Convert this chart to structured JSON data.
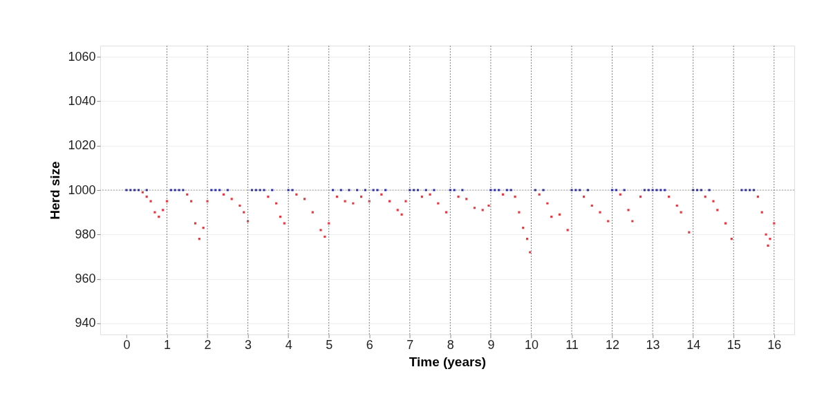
{
  "chart_data": {
    "type": "scatter",
    "xlabel": "Time (years)",
    "ylabel": "Herd size",
    "xlim": [
      -0.65,
      16.5
    ],
    "ylim": [
      935,
      1065
    ],
    "xticks": [
      0,
      1,
      2,
      3,
      4,
      5,
      6,
      7,
      8,
      9,
      10,
      11,
      12,
      13,
      14,
      15,
      16
    ],
    "yticks": [
      940,
      960,
      980,
      1000,
      1020,
      1040,
      1060
    ],
    "grid": "y",
    "marker": "square",
    "ref_lines": [
      {
        "axis": "y",
        "value": 1000,
        "line_style": "dotted",
        "color": "#999999"
      },
      {
        "axis": "x",
        "value": 1,
        "line_style": "dotted",
        "color": "#777777"
      },
      {
        "axis": "x",
        "value": 2,
        "line_style": "dotted",
        "color": "#777777"
      },
      {
        "axis": "x",
        "value": 3,
        "line_style": "dotted",
        "color": "#777777"
      },
      {
        "axis": "x",
        "value": 4,
        "line_style": "dotted",
        "color": "#777777"
      },
      {
        "axis": "x",
        "value": 5,
        "line_style": "dotted",
        "color": "#777777"
      },
      {
        "axis": "x",
        "value": 6,
        "line_style": "dotted",
        "color": "#777777"
      },
      {
        "axis": "x",
        "value": 7,
        "line_style": "dotted",
        "color": "#777777"
      },
      {
        "axis": "x",
        "value": 8,
        "line_style": "dotted",
        "color": "#777777"
      },
      {
        "axis": "x",
        "value": 9,
        "line_style": "dotted",
        "color": "#777777"
      },
      {
        "axis": "x",
        "value": 10,
        "line_style": "dotted",
        "color": "#777777"
      },
      {
        "axis": "x",
        "value": 11,
        "line_style": "dotted",
        "color": "#777777"
      },
      {
        "axis": "x",
        "value": 12,
        "line_style": "dotted",
        "color": "#777777"
      },
      {
        "axis": "x",
        "value": 13,
        "line_style": "dotted",
        "color": "#777777"
      },
      {
        "axis": "x",
        "value": 14,
        "line_style": "dotted",
        "color": "#777777"
      },
      {
        "axis": "x",
        "value": 15,
        "line_style": "dotted",
        "color": "#777777"
      },
      {
        "axis": "x",
        "value": 16,
        "line_style": "dotted",
        "color": "#777777"
      }
    ],
    "series": [
      {
        "color": "#e8202a",
        "x": [
          0.4,
          0.5,
          0.6,
          0.7,
          0.8,
          0.9,
          1.0,
          1.5,
          1.6,
          1.7,
          1.8,
          1.9,
          2.0,
          2.4,
          2.6,
          2.8,
          2.9,
          3.0,
          3.5,
          3.7,
          3.8,
          3.9,
          4.2,
          4.4,
          4.6,
          4.8,
          4.9,
          5.0,
          5.2,
          5.4,
          5.6,
          5.8,
          6.0,
          6.3,
          6.5,
          6.7,
          6.8,
          6.9,
          7.3,
          7.5,
          7.7,
          7.9,
          8.2,
          8.4,
          8.6,
          8.8,
          8.95,
          9.3,
          9.6,
          9.7,
          9.8,
          9.9,
          9.97,
          10.2,
          10.4,
          10.5,
          10.7,
          10.9,
          11.3,
          11.5,
          11.7,
          11.9,
          12.2,
          12.4,
          12.5,
          12.7,
          13.4,
          13.6,
          13.7,
          13.9,
          14.3,
          14.5,
          14.6,
          14.8,
          14.95,
          15.6,
          15.7,
          15.8,
          15.85,
          15.9,
          16.0
        ],
        "values": [
          999,
          997,
          995,
          990,
          988,
          991,
          995,
          998,
          995,
          985,
          978,
          983,
          995,
          998,
          996,
          993,
          990,
          986,
          997,
          994,
          988,
          985,
          998,
          996,
          990,
          982,
          979,
          985,
          997,
          995,
          994,
          997,
          995,
          998,
          995,
          991,
          989,
          995,
          997,
          998,
          994,
          990,
          997,
          996,
          992,
          991,
          993,
          998,
          997,
          990,
          983,
          978,
          972,
          998,
          994,
          988,
          989,
          982,
          997,
          993,
          990,
          986,
          998,
          991,
          986,
          997,
          997,
          993,
          990,
          981,
          997,
          995,
          991,
          985,
          978,
          997,
          990,
          980,
          975,
          978,
          985
        ]
      },
      {
        "color": "#1a1a9a",
        "x": [
          0.0,
          0.1,
          0.2,
          0.3,
          0.5,
          1.1,
          1.2,
          1.3,
          1.4,
          2.1,
          2.2,
          2.3,
          2.5,
          3.1,
          3.2,
          3.3,
          3.4,
          3.6,
          4.0,
          4.1,
          5.1,
          5.3,
          5.5,
          5.7,
          5.9,
          6.1,
          6.2,
          6.4,
          7.0,
          7.1,
          7.2,
          7.4,
          7.6,
          8.0,
          8.1,
          8.3,
          9.0,
          9.1,
          9.2,
          9.4,
          9.5,
          10.1,
          10.3,
          11.0,
          11.1,
          11.2,
          11.4,
          12.0,
          12.1,
          12.3,
          12.8,
          12.9,
          13.0,
          13.1,
          13.2,
          13.3,
          14.0,
          14.1,
          14.2,
          14.4,
          15.2,
          15.3,
          15.4,
          15.5
        ],
        "values": [
          1000,
          1000,
          1000,
          1000,
          1000,
          1000,
          1000,
          1000,
          1000,
          1000,
          1000,
          1000,
          1000,
          1000,
          1000,
          1000,
          1000,
          1000,
          1000,
          1000,
          1000,
          1000,
          1000,
          1000,
          1000,
          1000,
          1000,
          1000,
          1000,
          1000,
          1000,
          1000,
          1000,
          1000,
          1000,
          1000,
          1000,
          1000,
          1000,
          1000,
          1000,
          1000,
          1000,
          1000,
          1000,
          1000,
          1000,
          1000,
          1000,
          1000,
          1000,
          1000,
          1000,
          1000,
          1000,
          1000,
          1000,
          1000,
          1000,
          1000,
          1000,
          1000,
          1000,
          1000
        ]
      }
    ]
  }
}
